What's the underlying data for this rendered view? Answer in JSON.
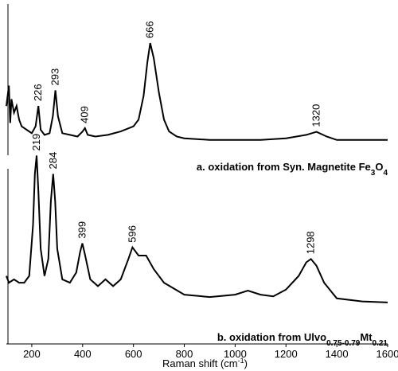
{
  "chart_data": {
    "type": "line",
    "x_label": [
      "Raman shift (cm",
      "-1",
      ")"
    ],
    "xlim": [
      100,
      1600
    ],
    "xticks": [
      200,
      400,
      600,
      800,
      1000,
      1200,
      1400,
      1600
    ],
    "ylim": [
      0,
      100
    ],
    "series": [
      {
        "name": [
          "a. oxidation from Syn. Magnetite Fe",
          "3",
          "O",
          "4"
        ],
        "color": "#000000",
        "x": [
          100,
          110,
          115,
          120,
          130,
          140,
          150,
          160,
          180,
          200,
          215,
          226,
          235,
          250,
          270,
          283,
          293,
          303,
          320,
          350,
          380,
          400,
          409,
          420,
          450,
          500,
          550,
          600,
          620,
          640,
          655,
          666,
          680,
          700,
          720,
          740,
          770,
          800,
          900,
          1000,
          1100,
          1200,
          1280,
          1320,
          1360,
          1400,
          1500,
          1600
        ],
        "values": [
          70,
          76,
          65,
          72,
          68,
          70,
          66,
          64,
          63,
          62,
          64,
          70,
          63,
          61.5,
          62,
          67,
          74.6,
          67,
          62,
          61.5,
          61,
          62.5,
          63.5,
          61.5,
          61,
          61.5,
          62.5,
          64,
          66,
          73,
          83,
          88.5,
          84,
          74,
          66,
          62.5,
          61,
          60.5,
          60,
          60,
          60,
          60.5,
          61.5,
          62.4,
          61,
          60,
          60,
          60
        ],
        "peaks": [
          226,
          293,
          409,
          666,
          1320
        ]
      },
      {
        "name": [
          "b. oxidation from Ulvo",
          "0.75-0.79",
          "Mt",
          "0.21"
        ],
        "color": "#000000",
        "x": [
          100,
          110,
          130,
          150,
          170,
          190,
          205,
          212,
          219,
          226,
          235,
          250,
          265,
          275,
          284,
          292,
          300,
          320,
          350,
          375,
          390,
          399,
          410,
          430,
          460,
          490,
          520,
          550,
          580,
          596,
          620,
          650,
          680,
          720,
          800,
          900,
          1000,
          1050,
          1100,
          1150,
          1200,
          1250,
          1280,
          1298,
          1320,
          1350,
          1400,
          1500,
          1600
        ],
        "values": [
          20,
          18,
          19,
          18,
          18,
          20,
          35,
          50,
          55.4,
          45,
          28,
          20,
          25,
          42,
          50,
          42,
          28,
          19,
          18,
          21,
          27,
          29.6,
          26,
          19,
          17,
          19,
          17,
          19,
          25,
          28.4,
          26,
          26,
          22,
          18,
          14.5,
          13.8,
          14.5,
          15.7,
          14.5,
          14,
          16,
          20,
          24,
          25,
          23,
          18,
          13.4,
          12.5,
          12.2
        ],
        "peaks": [
          219,
          284,
          399,
          596,
          1298
        ]
      }
    ]
  }
}
